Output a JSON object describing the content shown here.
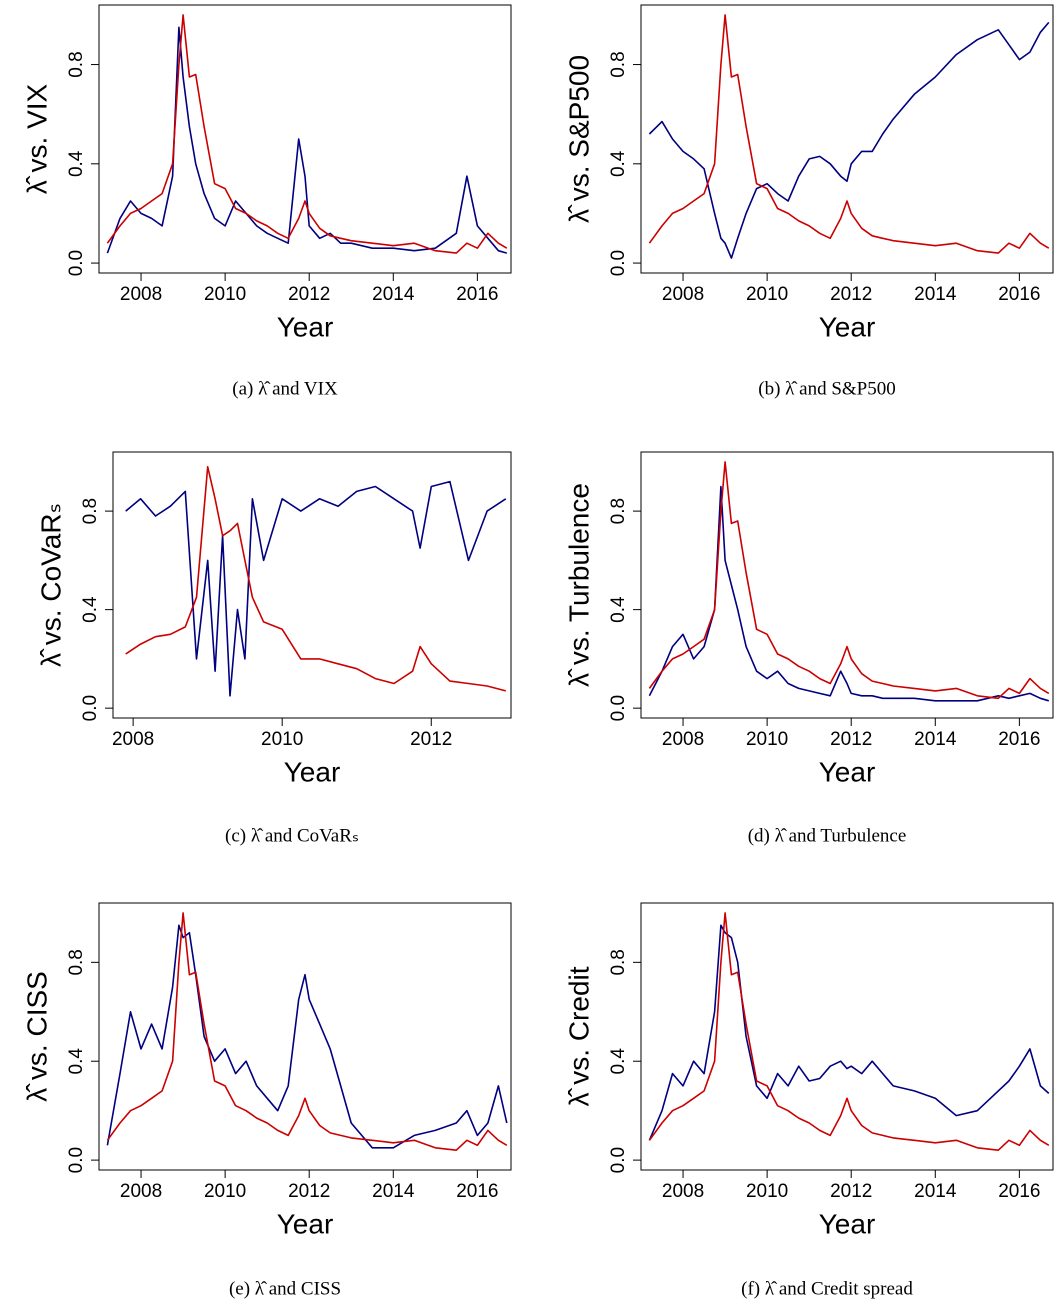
{
  "chart_data": [
    {
      "type": "line",
      "y_label": "λ̂ vs. VIX",
      "x_label": "Year",
      "caption": "(a) λ̂ and VIX",
      "x": [
        2007.2,
        2007.5,
        2007.75,
        2008.0,
        2008.25,
        2008.5,
        2008.75,
        2008.9,
        2009.0,
        2009.15,
        2009.3,
        2009.5,
        2009.75,
        2010.0,
        2010.25,
        2010.5,
        2010.75,
        2011.0,
        2011.25,
        2011.5,
        2011.75,
        2011.9,
        2012.0,
        2012.25,
        2012.5,
        2012.75,
        2013.0,
        2013.5,
        2014.0,
        2014.5,
        2015.0,
        2015.5,
        2015.75,
        2016.0,
        2016.25,
        2016.5,
        2016.7
      ],
      "series": [
        {
          "color": "#000080",
          "values": [
            0.04,
            0.18,
            0.25,
            0.2,
            0.18,
            0.15,
            0.35,
            0.95,
            0.75,
            0.55,
            0.4,
            0.28,
            0.18,
            0.15,
            0.25,
            0.2,
            0.15,
            0.12,
            0.1,
            0.08,
            0.5,
            0.35,
            0.15,
            0.1,
            0.12,
            0.08,
            0.08,
            0.06,
            0.06,
            0.05,
            0.06,
            0.12,
            0.35,
            0.15,
            0.1,
            0.05,
            0.04
          ]
        },
        {
          "color": "#cc0000",
          "values": [
            0.08,
            0.15,
            0.2,
            0.22,
            0.25,
            0.28,
            0.4,
            0.8,
            1.0,
            0.75,
            0.76,
            0.55,
            0.32,
            0.3,
            0.22,
            0.2,
            0.17,
            0.15,
            0.12,
            0.1,
            0.18,
            0.25,
            0.2,
            0.14,
            0.11,
            0.1,
            0.09,
            0.08,
            0.07,
            0.08,
            0.05,
            0.04,
            0.08,
            0.06,
            0.12,
            0.08,
            0.06
          ]
        }
      ],
      "xlim": [
        2007.0,
        2016.8
      ],
      "ylim": [
        -0.04,
        1.04
      ],
      "xticks": [
        2008,
        2010,
        2012,
        2014,
        2016
      ],
      "yticks": [
        {
          "value": 0,
          "label": "0.0"
        },
        0.4,
        0.8
      ]
    },
    {
      "type": "line",
      "y_label": "λ̂ vs. S&P500",
      "x_label": "Year",
      "caption": "(b) λ̂ and S&P500",
      "x": [
        2007.2,
        2007.5,
        2007.75,
        2008.0,
        2008.25,
        2008.5,
        2008.75,
        2008.9,
        2009.0,
        2009.15,
        2009.3,
        2009.5,
        2009.75,
        2010.0,
        2010.25,
        2010.5,
        2010.75,
        2011.0,
        2011.25,
        2011.5,
        2011.75,
        2011.9,
        2012.0,
        2012.25,
        2012.5,
        2012.75,
        2013.0,
        2013.5,
        2014.0,
        2014.5,
        2015.0,
        2015.5,
        2015.75,
        2016.0,
        2016.25,
        2016.5,
        2016.7
      ],
      "series": [
        {
          "color": "#000080",
          "values": [
            0.52,
            0.57,
            0.5,
            0.45,
            0.42,
            0.38,
            0.2,
            0.1,
            0.08,
            0.02,
            0.1,
            0.2,
            0.3,
            0.32,
            0.28,
            0.25,
            0.35,
            0.42,
            0.43,
            0.4,
            0.35,
            0.33,
            0.4,
            0.45,
            0.45,
            0.52,
            0.58,
            0.68,
            0.75,
            0.84,
            0.9,
            0.94,
            0.88,
            0.82,
            0.85,
            0.93,
            0.97
          ]
        },
        {
          "color": "#cc0000",
          "values": [
            0.08,
            0.15,
            0.2,
            0.22,
            0.25,
            0.28,
            0.4,
            0.8,
            1.0,
            0.75,
            0.76,
            0.55,
            0.32,
            0.3,
            0.22,
            0.2,
            0.17,
            0.15,
            0.12,
            0.1,
            0.18,
            0.25,
            0.2,
            0.14,
            0.11,
            0.1,
            0.09,
            0.08,
            0.07,
            0.08,
            0.05,
            0.04,
            0.08,
            0.06,
            0.12,
            0.08,
            0.06
          ]
        }
      ],
      "xlim": [
        2007.0,
        2016.8
      ],
      "ylim": [
        -0.04,
        1.04
      ],
      "xticks": [
        2008,
        2010,
        2012,
        2014,
        2016
      ],
      "yticks": [
        {
          "value": 0,
          "label": "0.0"
        },
        0.4,
        0.8
      ]
    },
    {
      "type": "line",
      "y_label": "λ̂ vs. CoVaRₛ",
      "x_label": "Year",
      "caption": "(c) λ̂ and CoVaRₛ",
      "x": [
        2007.9,
        2008.1,
        2008.3,
        2008.5,
        2008.7,
        2008.85,
        2009.0,
        2009.1,
        2009.2,
        2009.3,
        2009.4,
        2009.5,
        2009.6,
        2009.75,
        2010.0,
        2010.25,
        2010.5,
        2010.75,
        2011.0,
        2011.25,
        2011.5,
        2011.75,
        2011.85,
        2012.0,
        2012.25,
        2012.5,
        2012.75,
        2013.0
      ],
      "series": [
        {
          "color": "#000080",
          "values": [
            0.8,
            0.85,
            0.78,
            0.82,
            0.88,
            0.2,
            0.6,
            0.15,
            0.7,
            0.05,
            0.4,
            0.2,
            0.85,
            0.6,
            0.85,
            0.8,
            0.85,
            0.82,
            0.88,
            0.9,
            0.85,
            0.8,
            0.65,
            0.9,
            0.92,
            0.6,
            0.8,
            0.85
          ]
        },
        {
          "color": "#cc0000",
          "values": [
            0.22,
            0.26,
            0.29,
            0.3,
            0.33,
            0.45,
            0.98,
            0.85,
            0.7,
            0.72,
            0.75,
            0.6,
            0.45,
            0.35,
            0.32,
            0.2,
            0.2,
            0.18,
            0.16,
            0.12,
            0.1,
            0.15,
            0.25,
            0.18,
            0.11,
            0.1,
            0.09,
            0.07
          ]
        }
      ],
      "xlim": [
        2007.73,
        2013.07
      ],
      "ylim": [
        -0.04,
        1.04
      ],
      "xticks": [
        2008,
        2010,
        2012
      ],
      "yticks": [
        {
          "value": 0,
          "label": "0.0"
        },
        0.4,
        0.8
      ]
    },
    {
      "type": "line",
      "y_label": "λ̂ vs. Turbulence",
      "x_label": "Year",
      "caption": "(d) λ̂ and Turbulence",
      "x": [
        2007.2,
        2007.5,
        2007.75,
        2008.0,
        2008.25,
        2008.5,
        2008.75,
        2008.9,
        2009.0,
        2009.15,
        2009.3,
        2009.5,
        2009.75,
        2010.0,
        2010.25,
        2010.5,
        2010.75,
        2011.0,
        2011.25,
        2011.5,
        2011.75,
        2011.9,
        2012.0,
        2012.25,
        2012.5,
        2012.75,
        2013.0,
        2013.5,
        2014.0,
        2014.5,
        2015.0,
        2015.5,
        2015.75,
        2016.0,
        2016.25,
        2016.5,
        2016.7
      ],
      "series": [
        {
          "color": "#000080",
          "values": [
            0.05,
            0.15,
            0.25,
            0.3,
            0.2,
            0.25,
            0.4,
            0.9,
            0.6,
            0.5,
            0.4,
            0.25,
            0.15,
            0.12,
            0.15,
            0.1,
            0.08,
            0.07,
            0.06,
            0.05,
            0.15,
            0.1,
            0.06,
            0.05,
            0.05,
            0.04,
            0.04,
            0.04,
            0.03,
            0.03,
            0.03,
            0.05,
            0.04,
            0.05,
            0.06,
            0.04,
            0.03
          ]
        },
        {
          "color": "#cc0000",
          "values": [
            0.08,
            0.15,
            0.2,
            0.22,
            0.25,
            0.28,
            0.4,
            0.8,
            1.0,
            0.75,
            0.76,
            0.55,
            0.32,
            0.3,
            0.22,
            0.2,
            0.17,
            0.15,
            0.12,
            0.1,
            0.18,
            0.25,
            0.2,
            0.14,
            0.11,
            0.1,
            0.09,
            0.08,
            0.07,
            0.08,
            0.05,
            0.04,
            0.08,
            0.06,
            0.12,
            0.08,
            0.06
          ]
        }
      ],
      "xlim": [
        2007.0,
        2016.8
      ],
      "ylim": [
        -0.04,
        1.04
      ],
      "xticks": [
        2008,
        2010,
        2012,
        2014,
        2016
      ],
      "yticks": [
        {
          "value": 0,
          "label": "0.0"
        },
        0.4,
        0.8
      ]
    },
    {
      "type": "line",
      "y_label": "λ̂ vs. CISS",
      "x_label": "Year",
      "caption": "(e) λ̂ and CISS",
      "x": [
        2007.2,
        2007.5,
        2007.75,
        2008.0,
        2008.25,
        2008.5,
        2008.75,
        2008.9,
        2009.0,
        2009.15,
        2009.3,
        2009.5,
        2009.75,
        2010.0,
        2010.25,
        2010.5,
        2010.75,
        2011.0,
        2011.25,
        2011.5,
        2011.75,
        2011.9,
        2012.0,
        2012.25,
        2012.5,
        2012.75,
        2013.0,
        2013.5,
        2014.0,
        2014.5,
        2015.0,
        2015.5,
        2015.75,
        2016.0,
        2016.25,
        2016.5,
        2016.7
      ],
      "series": [
        {
          "color": "#000080",
          "values": [
            0.06,
            0.35,
            0.6,
            0.45,
            0.55,
            0.45,
            0.7,
            0.95,
            0.9,
            0.92,
            0.75,
            0.5,
            0.4,
            0.45,
            0.35,
            0.4,
            0.3,
            0.25,
            0.2,
            0.3,
            0.65,
            0.75,
            0.65,
            0.55,
            0.45,
            0.3,
            0.15,
            0.05,
            0.05,
            0.1,
            0.12,
            0.15,
            0.2,
            0.1,
            0.15,
            0.3,
            0.15
          ]
        },
        {
          "color": "#cc0000",
          "values": [
            0.08,
            0.15,
            0.2,
            0.22,
            0.25,
            0.28,
            0.4,
            0.8,
            1.0,
            0.75,
            0.76,
            0.55,
            0.32,
            0.3,
            0.22,
            0.2,
            0.17,
            0.15,
            0.12,
            0.1,
            0.18,
            0.25,
            0.2,
            0.14,
            0.11,
            0.1,
            0.09,
            0.08,
            0.07,
            0.08,
            0.05,
            0.04,
            0.08,
            0.06,
            0.12,
            0.08,
            0.06
          ]
        }
      ],
      "xlim": [
        2007.0,
        2016.8
      ],
      "ylim": [
        -0.04,
        1.04
      ],
      "xticks": [
        2008,
        2010,
        2012,
        2014,
        2016
      ],
      "yticks": [
        {
          "value": 0,
          "label": "0.0"
        },
        0.4,
        0.8
      ]
    },
    {
      "type": "line",
      "y_label": "λ̂ vs. Credit",
      "x_label": "Year",
      "caption": "(f) λ̂ and Credit spread",
      "x": [
        2007.2,
        2007.5,
        2007.75,
        2008.0,
        2008.25,
        2008.5,
        2008.75,
        2008.9,
        2009.0,
        2009.15,
        2009.3,
        2009.5,
        2009.75,
        2010.0,
        2010.25,
        2010.5,
        2010.75,
        2011.0,
        2011.25,
        2011.5,
        2011.75,
        2011.9,
        2012.0,
        2012.25,
        2012.5,
        2012.75,
        2013.0,
        2013.5,
        2014.0,
        2014.5,
        2015.0,
        2015.5,
        2015.75,
        2016.0,
        2016.25,
        2016.5,
        2016.7
      ],
      "series": [
        {
          "color": "#000080",
          "values": [
            0.08,
            0.2,
            0.35,
            0.3,
            0.4,
            0.35,
            0.6,
            0.95,
            0.92,
            0.9,
            0.8,
            0.5,
            0.3,
            0.25,
            0.35,
            0.3,
            0.38,
            0.32,
            0.33,
            0.38,
            0.4,
            0.37,
            0.38,
            0.35,
            0.4,
            0.35,
            0.3,
            0.28,
            0.25,
            0.18,
            0.2,
            0.28,
            0.32,
            0.38,
            0.45,
            0.3,
            0.27
          ]
        },
        {
          "color": "#cc0000",
          "values": [
            0.08,
            0.15,
            0.2,
            0.22,
            0.25,
            0.28,
            0.4,
            0.8,
            1.0,
            0.75,
            0.76,
            0.55,
            0.32,
            0.3,
            0.22,
            0.2,
            0.17,
            0.15,
            0.12,
            0.1,
            0.18,
            0.25,
            0.2,
            0.14,
            0.11,
            0.1,
            0.09,
            0.08,
            0.07,
            0.08,
            0.05,
            0.04,
            0.08,
            0.06,
            0.12,
            0.08,
            0.06
          ]
        }
      ],
      "xlim": [
        2007.0,
        2016.8
      ],
      "ylim": [
        -0.04,
        1.04
      ],
      "xticks": [
        2008,
        2010,
        2012,
        2014,
        2016
      ],
      "yticks": [
        {
          "value": 0,
          "label": "0.0"
        },
        0.4,
        0.8
      ]
    }
  ]
}
